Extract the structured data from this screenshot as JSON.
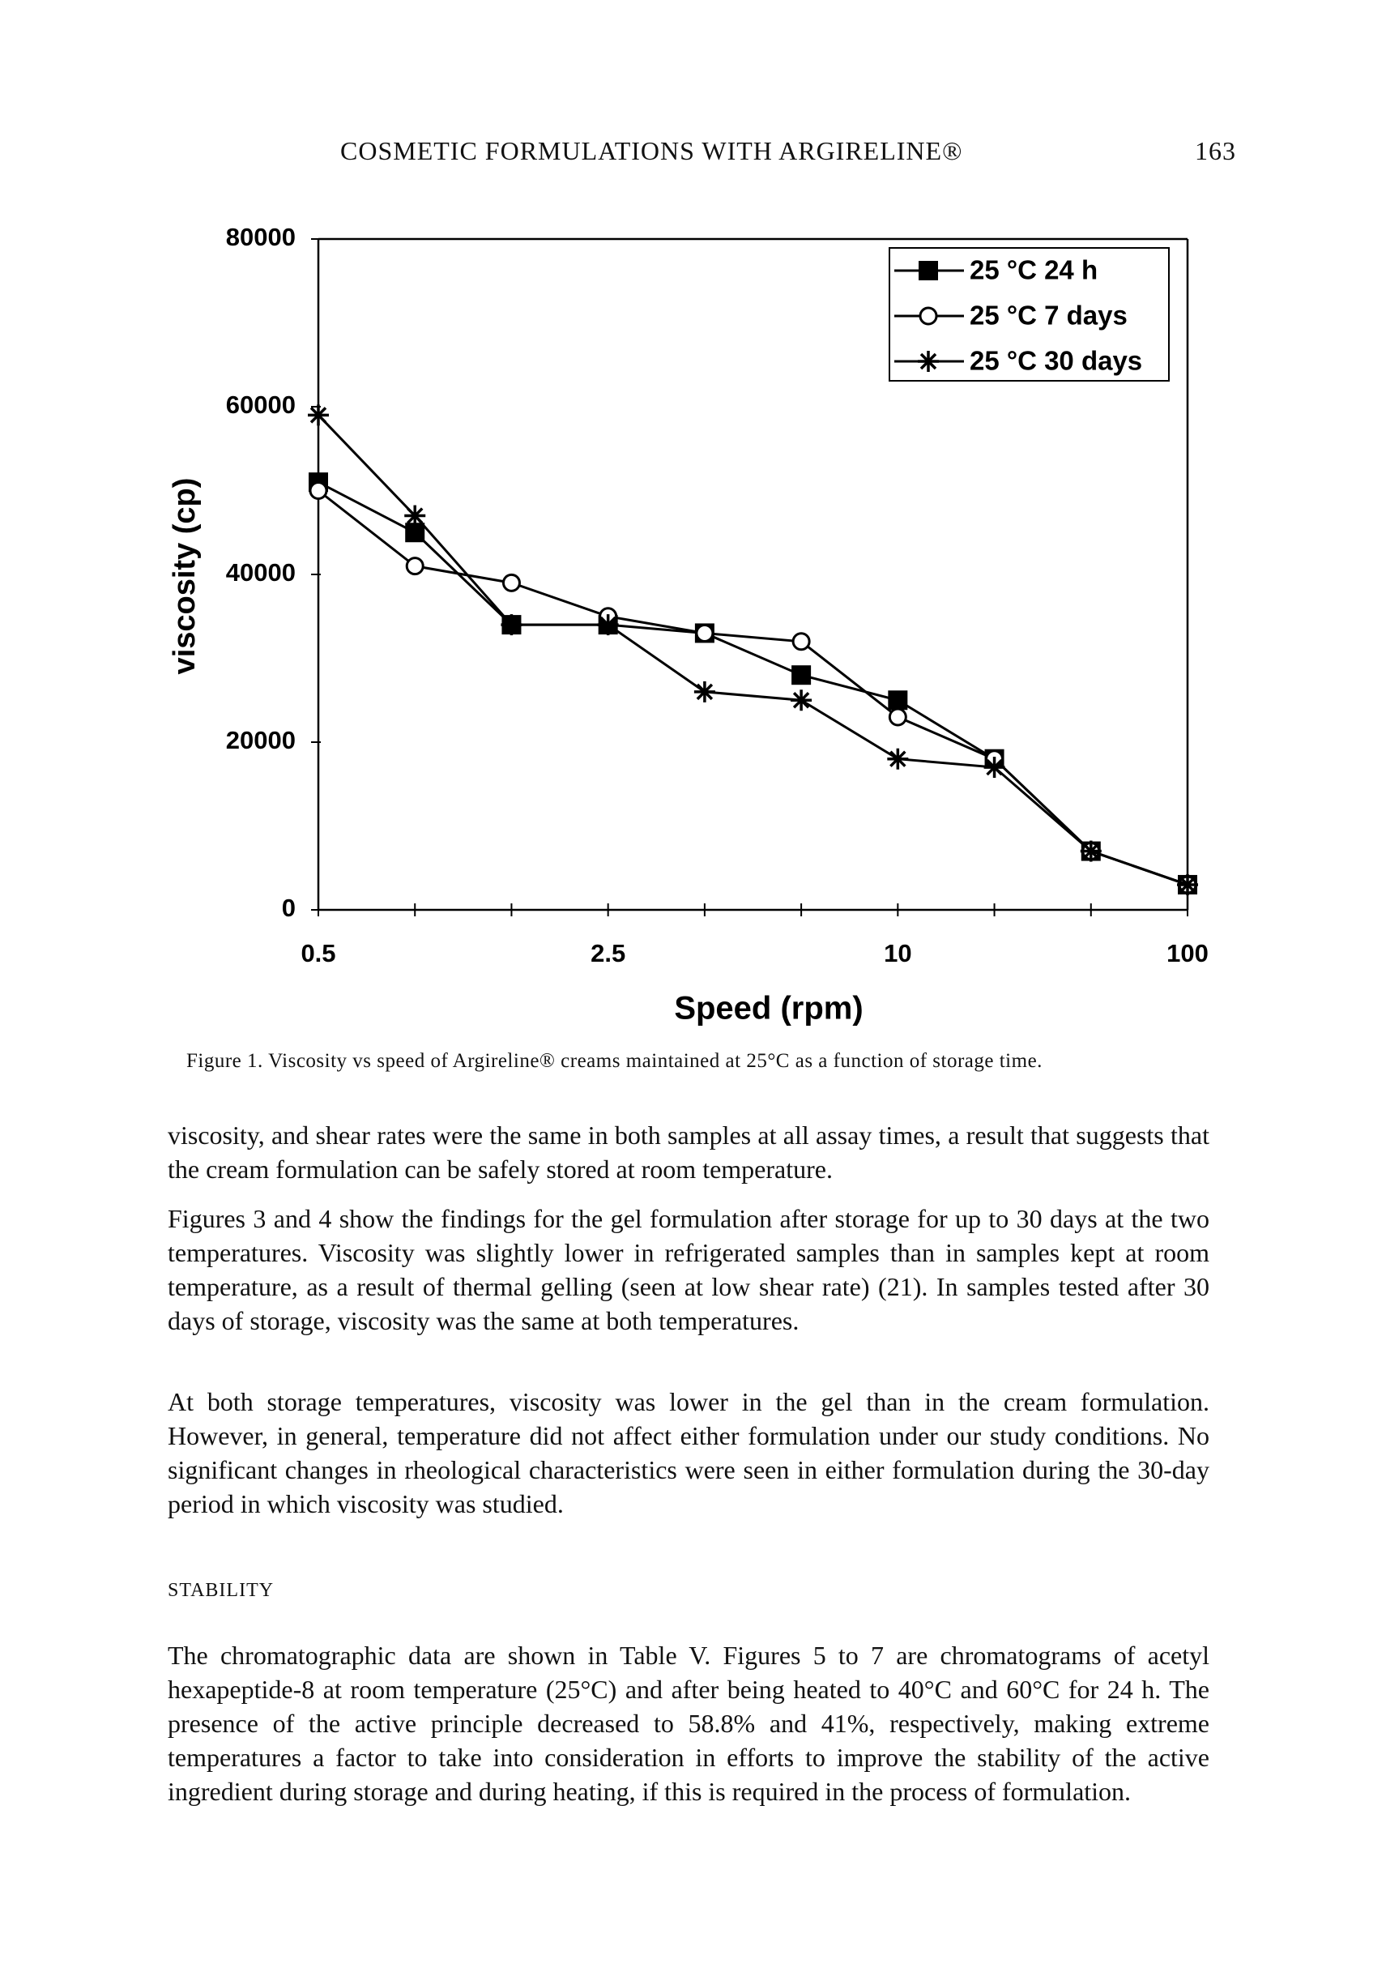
{
  "header": {
    "title": "COSMETIC FORMULATIONS WITH ARGIRELINE®",
    "page": "163"
  },
  "chart_data": {
    "type": "line",
    "x_label": "Speed (rpm)",
    "y_label": "viscosity (cp)",
    "categories": [
      "0.5",
      null,
      null,
      "2.5",
      null,
      null,
      "10",
      null,
      null,
      "100"
    ],
    "ylim": [
      0,
      80000
    ],
    "yticks": [
      0,
      20000,
      40000,
      60000,
      80000
    ],
    "legend": "upper right",
    "series": [
      {
        "name": "25 °C 24 h",
        "color": "#000000",
        "marker": "square",
        "values": [
          51000,
          45000,
          34000,
          34000,
          33000,
          28000,
          25000,
          18000,
          7000,
          3000
        ]
      },
      {
        "name": "25 °C 7 days",
        "color": "#000000",
        "marker": "circle",
        "values": [
          50000,
          41000,
          39000,
          35000,
          33000,
          32000,
          23000,
          18000,
          7000,
          3000
        ]
      },
      {
        "name": "25 °C 30 days",
        "color": "#000000",
        "marker": "asterisk",
        "values": [
          59000,
          47000,
          34000,
          34000,
          26000,
          25000,
          18000,
          17000,
          7000,
          3000
        ]
      }
    ]
  },
  "caption": {
    "label": "Figure 1.",
    "text": "Viscosity vs speed of Argireline® creams maintained at 25°C as a function of storage time."
  },
  "body": {
    "paragraphs": [
      "viscosity, and shear rates were the same in both samples at all assay times, a result that suggests that the cream formulation can be safely stored at room temperature.",
      "Figures 3 and 4 show the findings for the gel formulation after storage for up to 30 days at the two temperatures. Viscosity was slightly lower in refrigerated samples than in samples kept at room temperature, as a result of thermal gelling (seen at low shear rate) (21). In samples tested after 30 days of storage, viscosity was the same at both temperatures.",
      "At both storage temperatures, viscosity was lower in the gel than in the cream formulation. However, in general, temperature did not affect either formulation under our study conditions. No significant changes in rheological characteristics were seen in either formulation during the 30-day period in which viscosity was studied."
    ],
    "heading": "STABILITY",
    "after": [
      "The chromatographic data are shown in Table V. Figures 5 to 7 are chromatograms of acetyl hexapeptide-8 at room temperature (25°C) and after being heated to 40°C and 60°C for 24 h. The presence of the active principle decreased to 58.8% and 41%, respectively, making extreme temperatures a factor to take into consideration in efforts to improve the stability of the active ingredient during storage and during heating, if this is required in the process of formulation."
    ]
  }
}
